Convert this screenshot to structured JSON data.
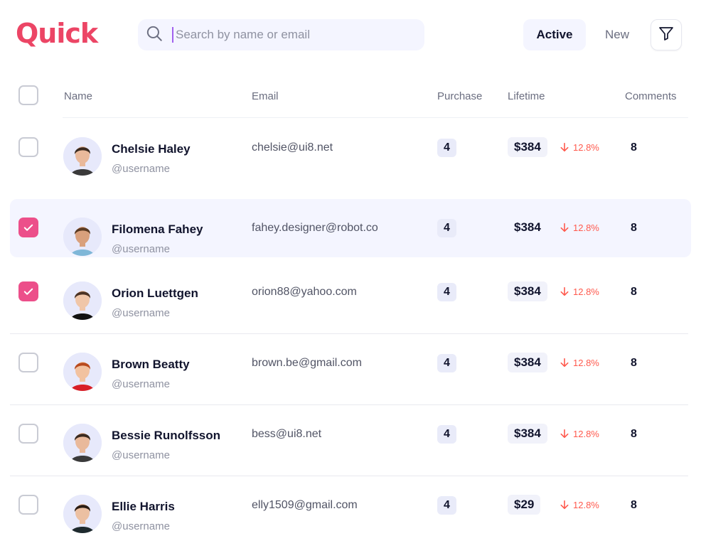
{
  "brand": {
    "logo_text": "Quick",
    "accent": "#ec4565"
  },
  "search": {
    "placeholder": "Search by name or email",
    "value": ""
  },
  "tabs": {
    "active_label": "Active",
    "new_label": "New"
  },
  "table": {
    "headers": {
      "name": "Name",
      "email": "Email",
      "purchase": "Purchase",
      "lifetime": "Lifetime",
      "comments": "Comments"
    },
    "rows": [
      {
        "name": "Chelsie Haley",
        "username": "@username",
        "email": "chelsie@ui8.net",
        "purchase": "4",
        "lifetime": "$384",
        "trend": "12.8%",
        "comments": "8",
        "checked": false
      },
      {
        "name": "Filomena Fahey",
        "username": "@username",
        "email": "fahey.designer@robot.co",
        "purchase": "4",
        "lifetime": "$384",
        "trend": "12.8%",
        "comments": "8",
        "checked": true
      },
      {
        "name": "Orion Luettgen",
        "username": "@username",
        "email": "orion88@yahoo.com",
        "purchase": "4",
        "lifetime": "$384",
        "trend": "12.8%",
        "comments": "8",
        "checked": true
      },
      {
        "name": "Brown Beatty",
        "username": "@username",
        "email": "brown.be@gmail.com",
        "purchase": "4",
        "lifetime": "$384",
        "trend": "12.8%",
        "comments": "8",
        "checked": false
      },
      {
        "name": "Bessie Runolfsson",
        "username": "@username",
        "email": "bess@ui8.net",
        "purchase": "4",
        "lifetime": "$384",
        "trend": "12.8%",
        "comments": "8",
        "checked": false
      },
      {
        "name": "Ellie Harris",
        "username": "@username",
        "email": "elly1509@gmail.com",
        "purchase": "4",
        "lifetime": "$29",
        "trend": "12.8%",
        "comments": "8",
        "checked": false
      }
    ]
  },
  "colors": {
    "checkbox_checked": "#ec4f8a",
    "trend_down": "#ff5a4e",
    "surface": "#f4f5ff"
  },
  "icons": {
    "search": "search-icon",
    "filter": "filter-icon",
    "trend": "arrow-down-icon",
    "check": "checkmark-icon"
  }
}
